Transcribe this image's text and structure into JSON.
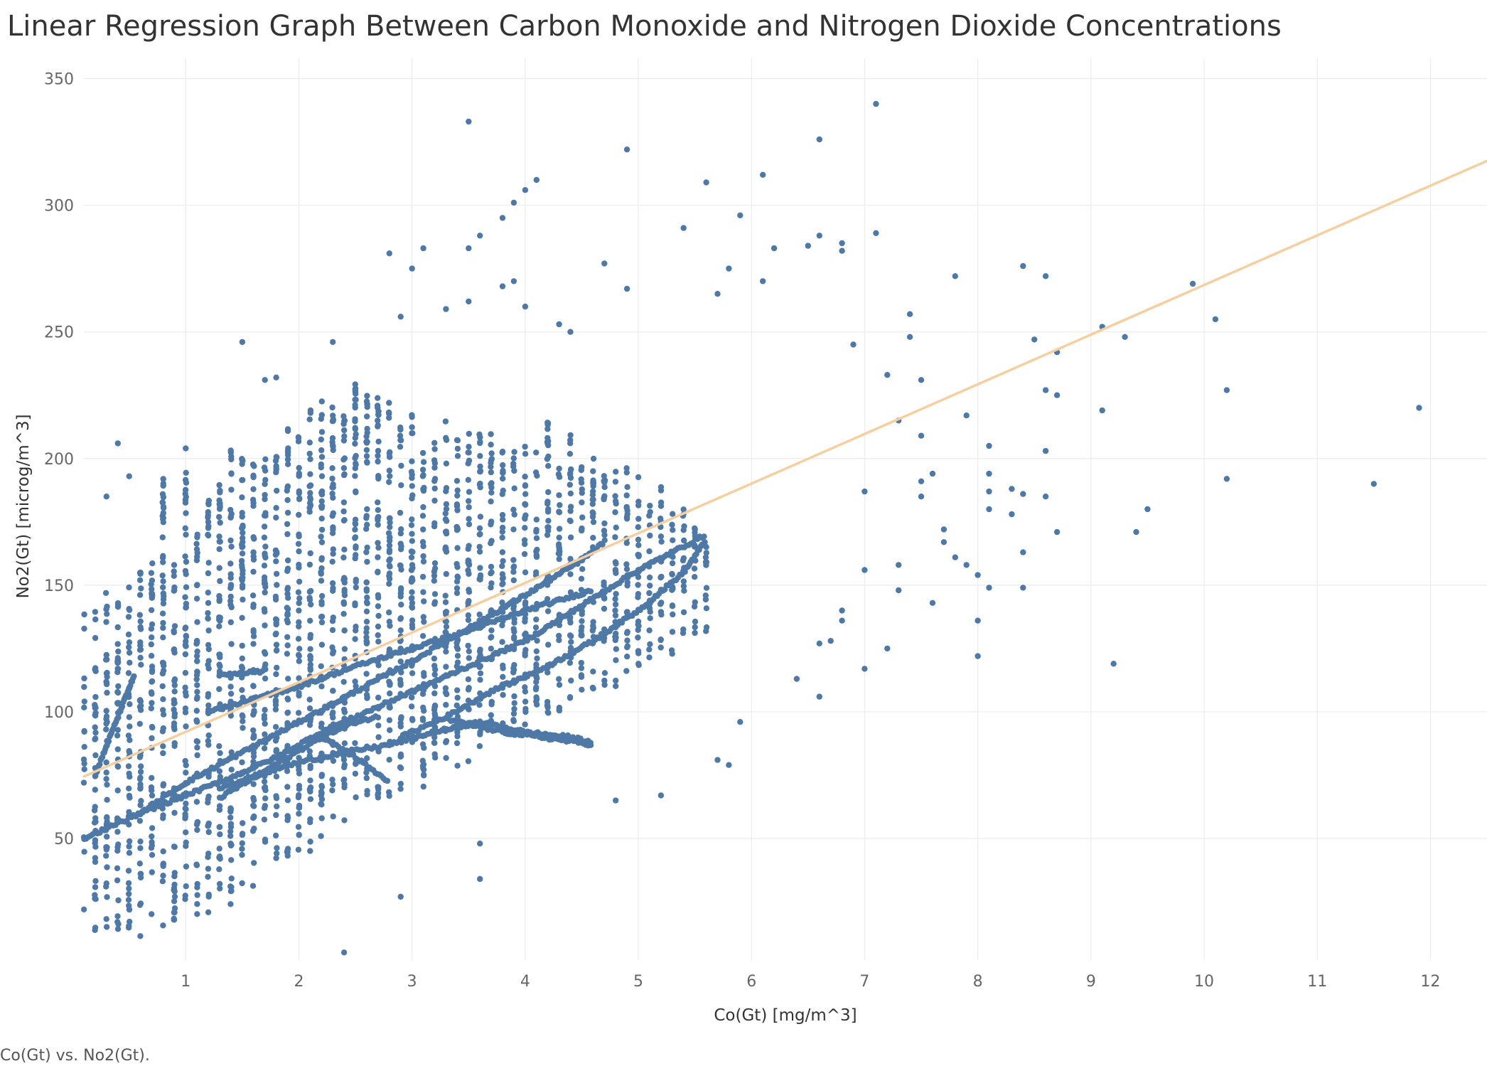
{
  "title": "Linear Regression Graph Between Carbon Monoxide and Nitrogen Dioxide Concentrations",
  "caption": "Co(Gt) vs. No2(Gt).",
  "colors": {
    "points": "#4e79a7",
    "trend": "#f5cfa0",
    "grid": "#ececec",
    "axis_text": "#666666"
  },
  "chart_data": {
    "type": "scatter",
    "title": "Linear Regression Graph Between Carbon Monoxide and Nitrogen Dioxide Concentrations",
    "xlabel": "Co(Gt) [mg/m^3]",
    "ylabel": "No2(Gt) [microg/m^3]",
    "xlim": [
      0.1,
      12.5
    ],
    "ylim": [
      2,
      358
    ],
    "x_ticks": [
      1,
      2,
      3,
      4,
      5,
      6,
      7,
      8,
      9,
      10,
      11,
      12
    ],
    "x_tick_labels": [
      "1",
      "2",
      "3",
      "4",
      "5",
      "6",
      "7",
      "8",
      "9",
      "10",
      "11",
      "12"
    ],
    "y_ticks": [
      50,
      100,
      150,
      200,
      250,
      300,
      350
    ],
    "y_tick_labels": [
      "50",
      "100",
      "150",
      "200",
      "250",
      "300",
      "350"
    ],
    "grid": true,
    "trend_line": {
      "slope": 19.6,
      "intercept": 72.5,
      "x_range": [
        0.1,
        12.5
      ]
    },
    "clusters": [
      {
        "x": 0.1,
        "ymin": 18,
        "ymax": 148
      },
      {
        "x": 0.2,
        "ymin": 12,
        "ymax": 140
      },
      {
        "x": 0.3,
        "ymin": 10,
        "ymax": 150
      },
      {
        "x": 0.4,
        "ymin": 8,
        "ymax": 145
      },
      {
        "x": 0.5,
        "ymin": 12,
        "ymax": 150
      },
      {
        "x": 0.6,
        "ymin": 10,
        "ymax": 160
      },
      {
        "x": 0.7,
        "ymin": 18,
        "ymax": 160
      },
      {
        "x": 0.8,
        "ymin": 15,
        "ymax": 195
      },
      {
        "x": 0.9,
        "ymin": 15,
        "ymax": 170
      },
      {
        "x": 1.0,
        "ymin": 22,
        "ymax": 195
      },
      {
        "x": 1.1,
        "ymin": 18,
        "ymax": 175
      },
      {
        "x": 1.2,
        "ymin": 20,
        "ymax": 188
      },
      {
        "x": 1.3,
        "ymin": 25,
        "ymax": 195
      },
      {
        "x": 1.4,
        "ymin": 20,
        "ymax": 205
      },
      {
        "x": 1.5,
        "ymin": 28,
        "ymax": 200
      },
      {
        "x": 1.6,
        "ymin": 30,
        "ymax": 200
      },
      {
        "x": 1.7,
        "ymin": 35,
        "ymax": 205
      },
      {
        "x": 1.8,
        "ymin": 35,
        "ymax": 205
      },
      {
        "x": 1.9,
        "ymin": 40,
        "ymax": 215
      },
      {
        "x": 2.0,
        "ymin": 45,
        "ymax": 210
      },
      {
        "x": 2.1,
        "ymin": 45,
        "ymax": 222
      },
      {
        "x": 2.2,
        "ymin": 50,
        "ymax": 225
      },
      {
        "x": 2.3,
        "ymin": 55,
        "ymax": 222
      },
      {
        "x": 2.4,
        "ymin": 55,
        "ymax": 220
      },
      {
        "x": 2.5,
        "ymin": 60,
        "ymax": 230
      },
      {
        "x": 2.6,
        "ymin": 60,
        "ymax": 228
      },
      {
        "x": 2.7,
        "ymin": 62,
        "ymax": 225
      },
      {
        "x": 2.8,
        "ymin": 65,
        "ymax": 222
      },
      {
        "x": 2.9,
        "ymin": 65,
        "ymax": 215
      },
      {
        "x": 3.0,
        "ymin": 68,
        "ymax": 220
      },
      {
        "x": 3.1,
        "ymin": 70,
        "ymax": 205
      },
      {
        "x": 3.2,
        "ymin": 72,
        "ymax": 210
      },
      {
        "x": 3.3,
        "ymin": 75,
        "ymax": 215
      },
      {
        "x": 3.4,
        "ymin": 78,
        "ymax": 212
      },
      {
        "x": 3.5,
        "ymin": 80,
        "ymax": 210
      },
      {
        "x": 3.6,
        "ymin": 82,
        "ymax": 210
      },
      {
        "x": 3.7,
        "ymin": 85,
        "ymax": 210
      },
      {
        "x": 3.8,
        "ymin": 88,
        "ymax": 205
      },
      {
        "x": 3.9,
        "ymin": 90,
        "ymax": 205
      },
      {
        "x": 4.0,
        "ymin": 92,
        "ymax": 210
      },
      {
        "x": 4.1,
        "ymin": 95,
        "ymax": 205
      },
      {
        "x": 4.2,
        "ymin": 98,
        "ymax": 215
      },
      {
        "x": 4.3,
        "ymin": 100,
        "ymax": 200
      },
      {
        "x": 4.4,
        "ymin": 102,
        "ymax": 210
      },
      {
        "x": 4.5,
        "ymin": 105,
        "ymax": 200
      },
      {
        "x": 4.6,
        "ymin": 108,
        "ymax": 200
      },
      {
        "x": 4.7,
        "ymin": 110,
        "ymax": 195
      },
      {
        "x": 4.8,
        "ymin": 110,
        "ymax": 195
      },
      {
        "x": 4.9,
        "ymin": 112,
        "ymax": 200
      },
      {
        "x": 5.0,
        "ymin": 115,
        "ymax": 195
      },
      {
        "x": 5.1,
        "ymin": 118,
        "ymax": 185
      },
      {
        "x": 5.2,
        "ymin": 120,
        "ymax": 190
      },
      {
        "x": 5.3,
        "ymin": 122,
        "ymax": 180
      },
      {
        "x": 5.4,
        "ymin": 125,
        "ymax": 180
      },
      {
        "x": 5.5,
        "ymin": 128,
        "ymax": 175
      },
      {
        "x": 5.6,
        "ymin": 130,
        "ymax": 170
      }
    ],
    "line_series": [
      {
        "x": [
          0.1,
          0.6,
          1.0,
          1.5,
          2.0,
          2.5,
          3.0,
          3.5,
          4.0,
          4.5,
          4.7
        ],
        "y": [
          50,
          60,
          72,
          84,
          96,
          108,
          120,
          133,
          146,
          160,
          167
        ]
      },
      {
        "x": [
          0.6,
          1.0,
          1.4,
          1.8,
          2.2,
          2.6,
          3.0,
          3.5,
          4.0,
          4.5,
          5.0,
          5.6
        ],
        "y": [
          60,
          67,
          74,
          82,
          92,
          100,
          108,
          118,
          128,
          142,
          156,
          170
        ]
      },
      {
        "x": [
          1.2,
          1.6,
          2.0,
          2.5,
          3.0,
          3.5,
          4.0,
          4.6
        ],
        "y": [
          100,
          105,
          110,
          118,
          125,
          132,
          140,
          148
        ]
      },
      {
        "x": [
          1.3,
          1.7,
          2.0,
          2.4,
          2.8,
          3.2,
          3.6,
          4.0,
          4.4,
          4.6
        ],
        "y": [
          70,
          76,
          80,
          84,
          87,
          92,
          96,
          92,
          90,
          88
        ]
      },
      {
        "x": [
          2.9,
          3.3,
          3.7,
          4.2,
          4.6,
          5.0,
          5.4,
          5.6
        ],
        "y": [
          90,
          98,
          108,
          118,
          128,
          140,
          155,
          168
        ]
      },
      {
        "x": [
          1.3,
          1.6,
          1.9,
          2.2,
          2.5,
          2.7
        ],
        "y": [
          66,
          74,
          82,
          90,
          96,
          98
        ]
      },
      {
        "x": [
          1.3,
          1.7
        ],
        "y": [
          115,
          116
        ]
      },
      {
        "x": [
          0.2,
          0.4,
          0.55
        ],
        "y": [
          75,
          98,
          115
        ]
      },
      {
        "x": [
          3.3,
          3.8,
          4.3,
          4.6
        ],
        "y": [
          97,
          92,
          89,
          87
        ]
      },
      {
        "x": [
          2.2,
          2.5,
          2.8
        ],
        "y": [
          90,
          82,
          72
        ]
      }
    ],
    "outliers": [
      {
        "x": 3.5,
        "y": 333
      },
      {
        "x": 7.1,
        "y": 340
      },
      {
        "x": 6.6,
        "y": 326
      },
      {
        "x": 4.9,
        "y": 322
      },
      {
        "x": 6.1,
        "y": 312
      },
      {
        "x": 4.1,
        "y": 310
      },
      {
        "x": 5.6,
        "y": 309
      },
      {
        "x": 4.0,
        "y": 306
      },
      {
        "x": 3.9,
        "y": 301
      },
      {
        "x": 5.9,
        "y": 296
      },
      {
        "x": 3.8,
        "y": 295
      },
      {
        "x": 5.4,
        "y": 291
      },
      {
        "x": 7.1,
        "y": 289
      },
      {
        "x": 6.6,
        "y": 288
      },
      {
        "x": 6.5,
        "y": 284
      },
      {
        "x": 6.8,
        "y": 285
      },
      {
        "x": 6.2,
        "y": 283
      },
      {
        "x": 6.8,
        "y": 282
      },
      {
        "x": 2.8,
        "y": 281
      },
      {
        "x": 4.7,
        "y": 277
      },
      {
        "x": 5.8,
        "y": 275
      },
      {
        "x": 8.4,
        "y": 276
      },
      {
        "x": 7.8,
        "y": 272
      },
      {
        "x": 8.6,
        "y": 272
      },
      {
        "x": 9.9,
        "y": 269
      },
      {
        "x": 6.1,
        "y": 270
      },
      {
        "x": 4.9,
        "y": 267
      },
      {
        "x": 5.7,
        "y": 265
      },
      {
        "x": 7.4,
        "y": 257
      },
      {
        "x": 10.1,
        "y": 255
      },
      {
        "x": 9.1,
        "y": 252
      },
      {
        "x": 9.3,
        "y": 248
      },
      {
        "x": 8.5,
        "y": 247
      },
      {
        "x": 6.9,
        "y": 245
      },
      {
        "x": 8.7,
        "y": 242
      },
      {
        "x": 7.4,
        "y": 248
      },
      {
        "x": 7.2,
        "y": 233
      },
      {
        "x": 7.5,
        "y": 231
      },
      {
        "x": 8.6,
        "y": 227
      },
      {
        "x": 10.2,
        "y": 227
      },
      {
        "x": 8.7,
        "y": 225
      },
      {
        "x": 11.9,
        "y": 220
      },
      {
        "x": 9.1,
        "y": 219
      },
      {
        "x": 7.9,
        "y": 217
      },
      {
        "x": 7.3,
        "y": 215
      },
      {
        "x": 7.5,
        "y": 209
      },
      {
        "x": 8.1,
        "y": 205
      },
      {
        "x": 8.6,
        "y": 203
      },
      {
        "x": 7.6,
        "y": 194
      },
      {
        "x": 8.1,
        "y": 194
      },
      {
        "x": 10.2,
        "y": 192
      },
      {
        "x": 11.5,
        "y": 190
      },
      {
        "x": 7.5,
        "y": 191
      },
      {
        "x": 8.3,
        "y": 188
      },
      {
        "x": 7.0,
        "y": 187
      },
      {
        "x": 8.1,
        "y": 187
      },
      {
        "x": 8.4,
        "y": 186
      },
      {
        "x": 8.6,
        "y": 185
      },
      {
        "x": 9.5,
        "y": 180
      },
      {
        "x": 8.1,
        "y": 180
      },
      {
        "x": 8.3,
        "y": 178
      },
      {
        "x": 7.5,
        "y": 185
      },
      {
        "x": 7.7,
        "y": 172
      },
      {
        "x": 8.7,
        "y": 171
      },
      {
        "x": 9.4,
        "y": 171
      },
      {
        "x": 7.7,
        "y": 167
      },
      {
        "x": 8.4,
        "y": 163
      },
      {
        "x": 7.8,
        "y": 161
      },
      {
        "x": 7.9,
        "y": 158
      },
      {
        "x": 7.3,
        "y": 158
      },
      {
        "x": 7.0,
        "y": 156
      },
      {
        "x": 8.0,
        "y": 154
      },
      {
        "x": 8.1,
        "y": 149
      },
      {
        "x": 8.4,
        "y": 149
      },
      {
        "x": 7.3,
        "y": 148
      },
      {
        "x": 7.6,
        "y": 143
      },
      {
        "x": 6.8,
        "y": 140
      },
      {
        "x": 8.0,
        "y": 136
      },
      {
        "x": 6.8,
        "y": 136
      },
      {
        "x": 6.7,
        "y": 128
      },
      {
        "x": 6.6,
        "y": 127
      },
      {
        "x": 7.2,
        "y": 125
      },
      {
        "x": 8.0,
        "y": 122
      },
      {
        "x": 9.2,
        "y": 119
      },
      {
        "x": 7.0,
        "y": 117
      },
      {
        "x": 6.4,
        "y": 113
      },
      {
        "x": 6.6,
        "y": 106
      },
      {
        "x": 5.9,
        "y": 96
      },
      {
        "x": 5.7,
        "y": 81
      },
      {
        "x": 5.8,
        "y": 79
      },
      {
        "x": 5.2,
        "y": 67
      },
      {
        "x": 4.8,
        "y": 65
      },
      {
        "x": 3.6,
        "y": 34
      },
      {
        "x": 3.6,
        "y": 48
      },
      {
        "x": 2.4,
        "y": 5
      },
      {
        "x": 2.9,
        "y": 27
      },
      {
        "x": 1.0,
        "y": 204
      },
      {
        "x": 1.5,
        "y": 246
      },
      {
        "x": 1.7,
        "y": 231
      },
      {
        "x": 1.8,
        "y": 232
      },
      {
        "x": 2.3,
        "y": 246
      },
      {
        "x": 3.0,
        "y": 275
      },
      {
        "x": 3.1,
        "y": 283
      },
      {
        "x": 3.3,
        "y": 259
      },
      {
        "x": 3.5,
        "y": 283
      },
      {
        "x": 3.6,
        "y": 288
      },
      {
        "x": 3.8,
        "y": 268
      },
      {
        "x": 3.9,
        "y": 270
      },
      {
        "x": 4.0,
        "y": 260
      },
      {
        "x": 4.3,
        "y": 253
      },
      {
        "x": 4.4,
        "y": 250
      },
      {
        "x": 3.5,
        "y": 262
      },
      {
        "x": 2.9,
        "y": 256
      },
      {
        "x": 0.4,
        "y": 206
      },
      {
        "x": 0.5,
        "y": 193
      },
      {
        "x": 0.3,
        "y": 185
      }
    ]
  }
}
